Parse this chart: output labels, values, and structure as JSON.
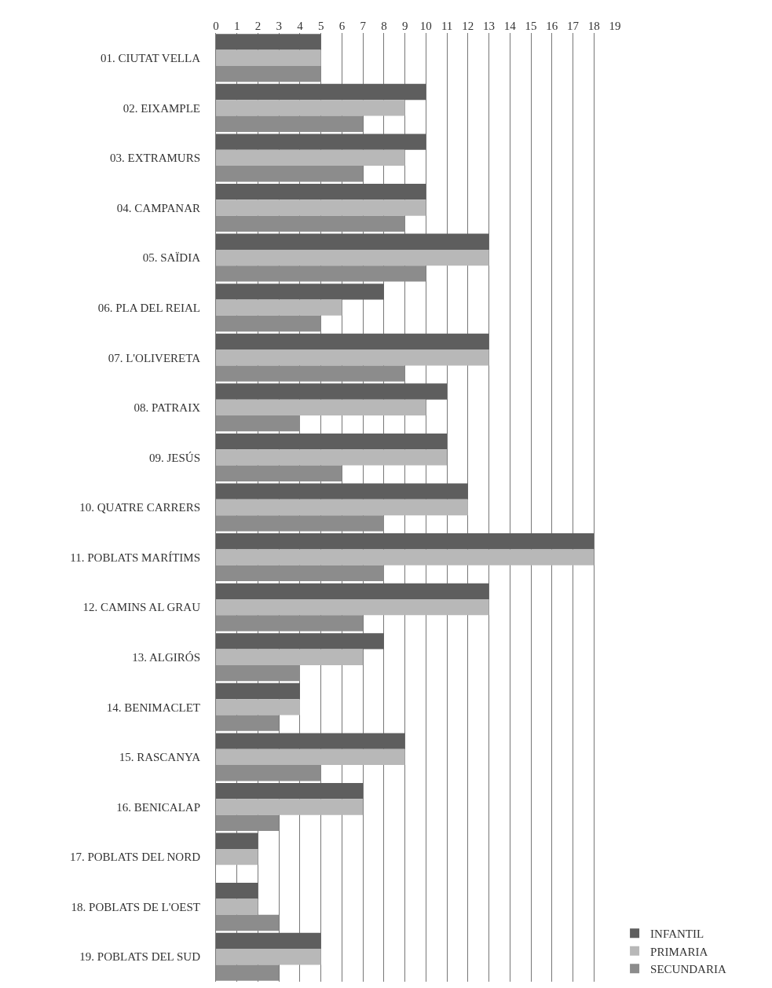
{
  "chart_data": {
    "type": "bar",
    "orientation": "horizontal",
    "categories": [
      "01. CIUTAT VELLA",
      "02. EIXAMPLE",
      "03. EXTRAMURS",
      "04. CAMPANAR",
      "05. SAÏDIA",
      "06. PLA DEL REIAL",
      "07. L'OLIVERETA",
      "08. PATRAIX",
      "09. JESÚS",
      "10. QUATRE CARRERS",
      "11. POBLATS MARÍTIMS",
      "12. CAMINS AL GRAU",
      "13. ALGIRÓS",
      "14. BENIMACLET",
      "15. RASCANYA",
      "16. BENICALAP",
      "17. POBLATS DEL NORD",
      "18. POBLATS DE L'OEST",
      "19. POBLATS DEL SUD"
    ],
    "series": [
      {
        "name": "INFANTIL",
        "color": "#5e5e5e",
        "values": [
          5,
          10,
          10,
          10,
          13,
          8,
          13,
          11,
          11,
          12,
          18,
          13,
          8,
          4,
          9,
          7,
          2,
          2,
          5
        ]
      },
      {
        "name": "PRIMARIA",
        "color": "#b8b8b8",
        "values": [
          5,
          9,
          9,
          10,
          13,
          6,
          13,
          10,
          11,
          12,
          18,
          13,
          7,
          4,
          9,
          7,
          2,
          2,
          5
        ]
      },
      {
        "name": "SECUNDARIA",
        "color": "#8c8c8c",
        "values": [
          5,
          7,
          7,
          9,
          10,
          5,
          9,
          4,
          6,
          8,
          8,
          7,
          4,
          3,
          5,
          3,
          0,
          3,
          3
        ]
      }
    ],
    "xlim": [
      0,
      19
    ],
    "xticks": [
      0,
      1,
      2,
      3,
      4,
      5,
      6,
      7,
      8,
      9,
      10,
      11,
      12,
      13,
      14,
      15,
      16,
      17,
      18,
      19
    ],
    "grid": "x",
    "legend": "bottom right"
  }
}
